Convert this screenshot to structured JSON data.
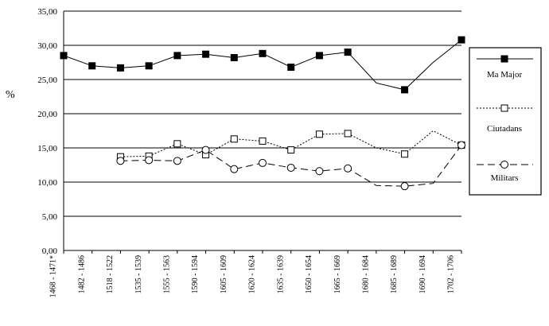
{
  "chart_data": {
    "type": "line",
    "title": "",
    "xlabel": "",
    "ylabel": "%",
    "ylim": [
      0,
      35
    ],
    "yticks": [
      "0,00",
      "5,00",
      "10,00",
      "15,00",
      "20,00",
      "25,00",
      "30,00",
      "35,00"
    ],
    "grid": true,
    "legend_position": "right",
    "categories": [
      "1468 - 1471*",
      "1482 - 1486",
      "1518 - 1522",
      "1535 - 1539",
      "1555 - 1563",
      "1590 - 1594",
      "1605 - 1609",
      "1620 - 1624",
      "1635 - 1639",
      "1650 - 1654",
      "1665 - 1669",
      "1680 - 1684",
      "1685 - 1689",
      "1690 - 1694",
      "1702 - 1706"
    ],
    "series": [
      {
        "name": "Ma Major",
        "line_style": "solid",
        "marker": "filled-square",
        "markers": [
          true,
          true,
          true,
          true,
          true,
          true,
          true,
          true,
          true,
          true,
          true,
          false,
          true,
          false,
          true
        ],
        "values": [
          28.5,
          27.0,
          26.7,
          27.0,
          28.5,
          28.7,
          28.2,
          28.8,
          26.8,
          28.5,
          29.0,
          24.5,
          23.5,
          27.5,
          30.8
        ]
      },
      {
        "name": "Ciutadans",
        "line_style": "dotted",
        "marker": "open-square",
        "markers": [
          false,
          false,
          true,
          true,
          true,
          true,
          true,
          true,
          true,
          true,
          true,
          false,
          true,
          false,
          true
        ],
        "values": [
          null,
          null,
          13.7,
          13.8,
          15.6,
          14.0,
          16.3,
          16.0,
          14.7,
          17.0,
          17.1,
          15.0,
          14.1,
          17.5,
          15.4
        ]
      },
      {
        "name": "Militars",
        "line_style": "dashed",
        "marker": "open-circle",
        "markers": [
          false,
          false,
          true,
          true,
          true,
          true,
          true,
          true,
          true,
          true,
          true,
          false,
          true,
          false,
          true
        ],
        "values": [
          null,
          null,
          13.1,
          13.2,
          13.1,
          14.7,
          11.9,
          12.8,
          12.1,
          11.6,
          12.0,
          9.5,
          9.4,
          9.8,
          15.4
        ]
      }
    ]
  }
}
